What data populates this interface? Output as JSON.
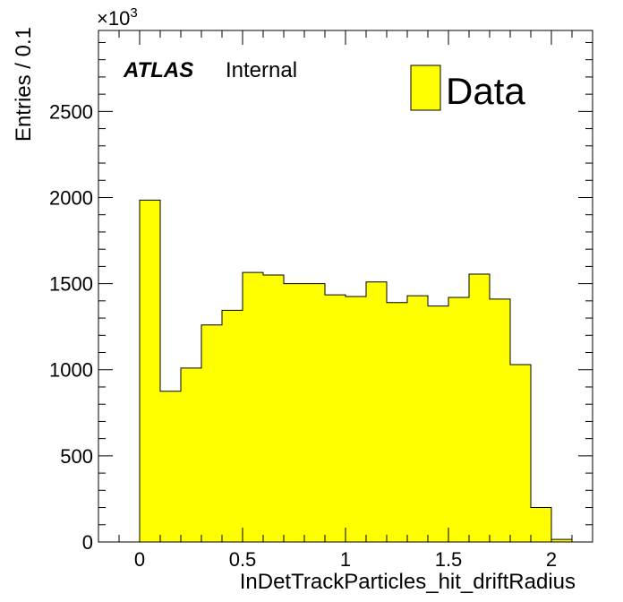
{
  "chart_data": {
    "type": "bar",
    "histogram": true,
    "bin_edges": [
      0,
      0.1,
      0.2,
      0.3,
      0.4,
      0.5,
      0.6,
      0.7,
      0.8,
      0.9,
      1.0,
      1.1,
      1.2,
      1.3,
      1.4,
      1.5,
      1.6,
      1.7,
      1.8,
      1.9,
      2.0,
      2.1
    ],
    "series": [
      {
        "name": "Data",
        "color": "#ffff00",
        "values": [
          1985,
          875,
          1010,
          1260,
          1345,
          1565,
          1550,
          1500,
          1500,
          1435,
          1425,
          1510,
          1390,
          1430,
          1370,
          1420,
          1555,
          1410,
          1030,
          200,
          15
        ]
      }
    ],
    "xlabel": "InDetTrackParticles_hit_driftRadius",
    "ylabel": "Entries / 0.1",
    "xlim": [
      -0.2,
      2.2
    ],
    "ylim": [
      0,
      2970
    ],
    "x_ticks": [
      0,
      0.5,
      1,
      1.5,
      2
    ],
    "x_tick_labels": [
      "0",
      "0.5",
      "1",
      "1.5",
      "2"
    ],
    "y_ticks": [
      0,
      500,
      1000,
      1500,
      2000,
      2500
    ],
    "y_tick_labels": [
      "0",
      "500",
      "1000",
      "1500",
      "2000",
      "2500"
    ],
    "y_multiplier": {
      "base": "×10",
      "exponent": "3"
    },
    "annotations": {
      "atlas": "ATLAS",
      "status": "Internal"
    },
    "legend": {
      "entry": "Data",
      "placement": "top-right"
    },
    "grid": false
  }
}
